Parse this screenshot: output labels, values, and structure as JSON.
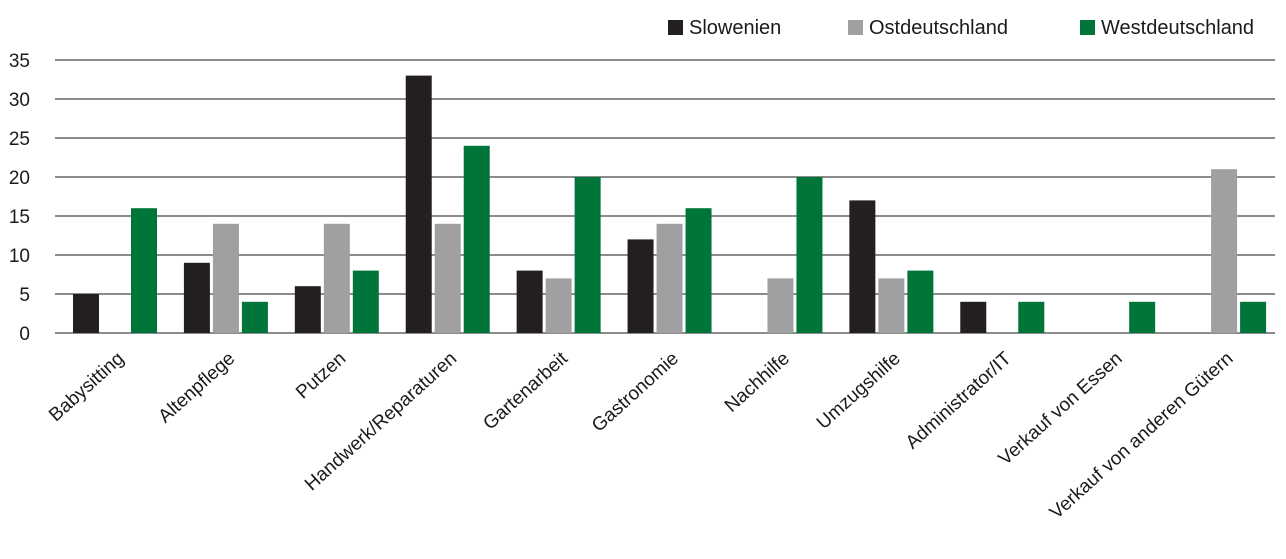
{
  "chart_data": {
    "type": "bar",
    "title": "",
    "xlabel": "",
    "ylabel": "",
    "ylim": [
      0,
      35
    ],
    "yticks": [
      0,
      5,
      10,
      15,
      20,
      25,
      30,
      35
    ],
    "grid": "horizontal",
    "legend_position": "top-right",
    "categories": [
      "Babysitting",
      "Altenpflege",
      "Putzen",
      "Handwerk/Reparaturen",
      "Gartenarbeit",
      "Gastronomie",
      "Nachhilfe",
      "Umzugshilfe",
      "Administrator/IT",
      "Verkauf von Essen",
      "Verkauf von anderen Gütern"
    ],
    "series": [
      {
        "name": "Slowenien",
        "color": "#231f20",
        "values": [
          5,
          9,
          6,
          33,
          8,
          12,
          0,
          17,
          4,
          0,
          0
        ]
      },
      {
        "name": "Ostdeutschland",
        "color": "#a0a0a2",
        "values": [
          0,
          14,
          14,
          14,
          7,
          14,
          7,
          7,
          0,
          0,
          21
        ]
      },
      {
        "name": "Westdeutschland",
        "color": "#00753a",
        "values": [
          16,
          4,
          8,
          24,
          20,
          16,
          20,
          8,
          4,
          4,
          4
        ]
      }
    ]
  }
}
